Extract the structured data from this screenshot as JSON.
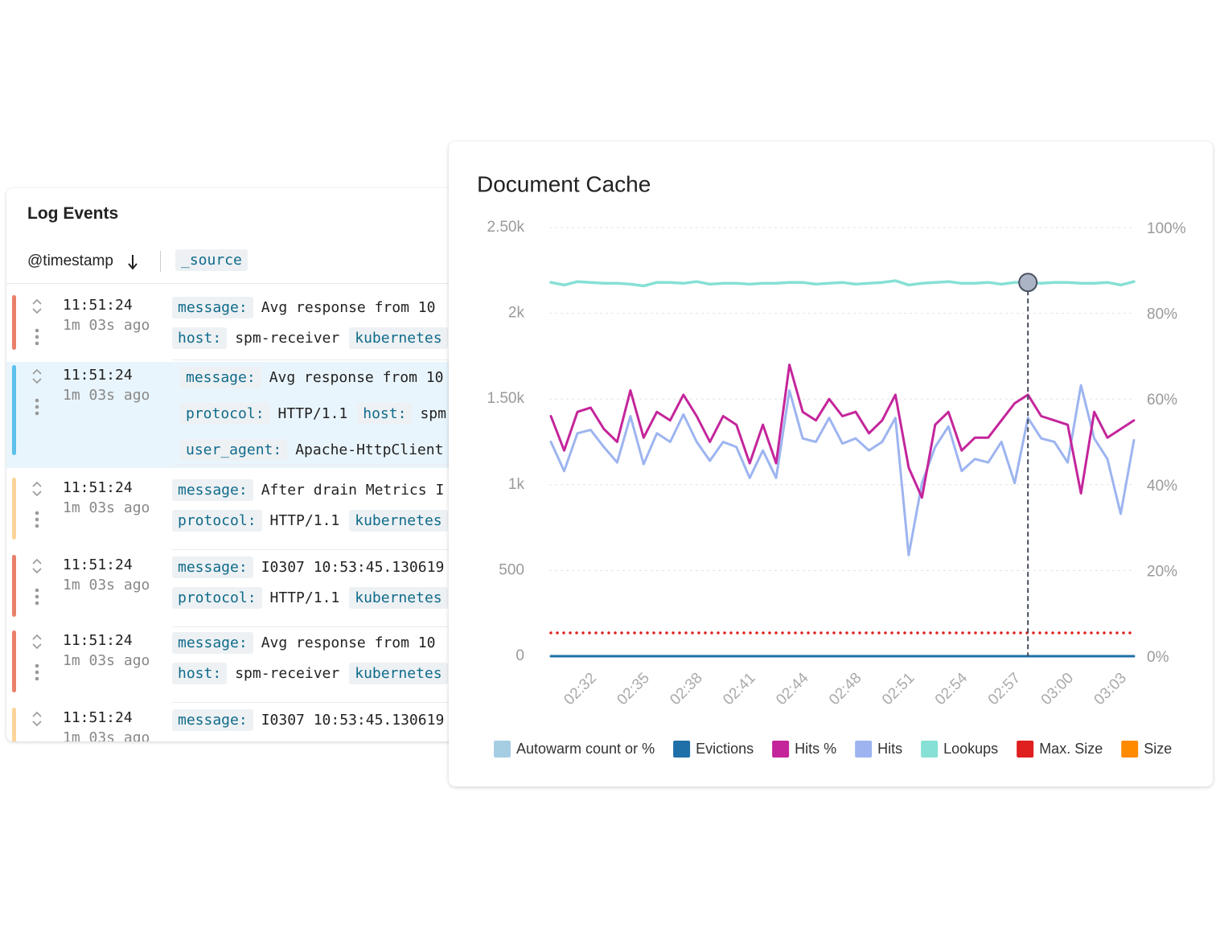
{
  "log_events": {
    "title": "Log Events",
    "sort_column": "@timestamp",
    "source_column": "_source",
    "rows": [
      {
        "time": "11:51:24",
        "ago": "1m 03s ago",
        "color": "#e8806a",
        "lines": [
          [
            {
              "key": "message:",
              "value": "Avg response from 10"
            }
          ],
          [
            {
              "key": "host:",
              "value": "spm-receiver"
            },
            {
              "key": "kubernetes"
            }
          ]
        ]
      },
      {
        "time": "11:51:24",
        "ago": "1m 03s ago",
        "color": "#5bc0eb",
        "selected": true,
        "lines": [
          [
            {
              "key": "message:",
              "value": "Avg response from 10"
            }
          ],
          [
            {
              "key": "protocol:",
              "value": "HTTP/1.1"
            },
            {
              "key": "host:",
              "value": "spm"
            }
          ],
          [
            {
              "key": "user_agent:",
              "value": "Apache-HttpClient"
            }
          ]
        ]
      },
      {
        "time": "11:51:24",
        "ago": "1m 03s ago",
        "color": "#fcd49a",
        "lines": [
          [
            {
              "key": "message:",
              "value": "After drain Metrics I"
            }
          ],
          [
            {
              "key": "protocol:",
              "value": "HTTP/1.1"
            },
            {
              "key": "kubernetes"
            }
          ]
        ]
      },
      {
        "time": "11:51:24",
        "ago": "1m 03s ago",
        "color": "#e8806a",
        "lines": [
          [
            {
              "key": "message:",
              "value": "I0307 10:53:45.130619"
            }
          ],
          [
            {
              "key": "protocol:",
              "value": "HTTP/1.1"
            },
            {
              "key": "kubernetes"
            }
          ]
        ]
      },
      {
        "time": "11:51:24",
        "ago": "1m 03s ago",
        "color": "#e8806a",
        "lines": [
          [
            {
              "key": "message:",
              "value": "Avg response from 10"
            }
          ],
          [
            {
              "key": "host:",
              "value": "spm-receiver"
            },
            {
              "key": "kubernetes"
            }
          ]
        ]
      },
      {
        "time": "11:51:24",
        "ago": "1m 03s ago",
        "color": "#fcd49a",
        "lines": [
          [
            {
              "key": "message:",
              "value": "I0307 10:53:45.130619"
            }
          ]
        ]
      }
    ]
  },
  "chart_data": {
    "type": "line",
    "title": "Document Cache",
    "categories": [
      null,
      null,
      null,
      "02:32",
      null,
      null,
      null,
      "02:35",
      null,
      null,
      null,
      "02:38",
      null,
      null,
      null,
      "02:41",
      null,
      null,
      null,
      "02:44",
      null,
      null,
      null,
      "02:48",
      null,
      null,
      null,
      "02:51",
      null,
      null,
      null,
      "02:54",
      null,
      null,
      null,
      "02:57",
      null,
      null,
      null,
      "03:00",
      null,
      null,
      null,
      "03:03",
      null
    ],
    "ylim": [
      0,
      2500
    ],
    "yticks": [
      0,
      500,
      {
        "value": 1000,
        "label": "1k"
      },
      {
        "value": 1500,
        "label": "1.50k"
      },
      {
        "value": 2000,
        "label": "2k"
      },
      {
        "value": 2500,
        "label": "2.50k"
      }
    ],
    "y2lim": [
      0,
      100
    ],
    "y2ticks": [
      {
        "value": 0,
        "label": "0%"
      },
      {
        "value": 20,
        "label": "20%"
      },
      {
        "value": 40,
        "label": "40%"
      },
      {
        "value": 60,
        "label": "60%"
      },
      {
        "value": 80,
        "label": "80%"
      },
      {
        "value": 100,
        "label": "100%"
      }
    ],
    "grid": true,
    "hover_index": 36,
    "series": [
      {
        "name": "Autowarm count or %",
        "color": "#a6cee3",
        "values": [
          null,
          null,
          null,
          null,
          null,
          null,
          null,
          null,
          null,
          null,
          null,
          null,
          null,
          null,
          null,
          null,
          null,
          null,
          null,
          null,
          null,
          null,
          null,
          null,
          null,
          null,
          null,
          null,
          null,
          null,
          null,
          null,
          null,
          null,
          null,
          null,
          null,
          null,
          null,
          null,
          null,
          null,
          null,
          null,
          null
        ]
      },
      {
        "name": "Evictions",
        "color": "#1f6fa8",
        "values": [
          0,
          0,
          0,
          0,
          0,
          0,
          0,
          0,
          0,
          0,
          0,
          0,
          0,
          0,
          0,
          0,
          0,
          0,
          0,
          0,
          0,
          0,
          0,
          0,
          0,
          0,
          0,
          0,
          0,
          0,
          0,
          0,
          0,
          0,
          0,
          0,
          0,
          0,
          0,
          0,
          0,
          0,
          0,
          0,
          0
        ]
      },
      {
        "name": "Hits %",
        "color": "#c4259b",
        "axis": "y2",
        "values": [
          56,
          48,
          57,
          58,
          53,
          50,
          62,
          51,
          57,
          55,
          61,
          56,
          50,
          56,
          54,
          45,
          54,
          45,
          68,
          57,
          55,
          60,
          56,
          57,
          52,
          55,
          61,
          44,
          37,
          54,
          57,
          48,
          51,
          51,
          55,
          59,
          61,
          56,
          55,
          54,
          38,
          57,
          51,
          53,
          55
        ]
      },
      {
        "name": "Hits",
        "color": "#9db4f0",
        "values": [
          1250,
          1080,
          1300,
          1320,
          1220,
          1130,
          1400,
          1120,
          1300,
          1250,
          1410,
          1250,
          1140,
          1250,
          1220,
          1040,
          1200,
          1040,
          1550,
          1270,
          1250,
          1390,
          1240,
          1270,
          1200,
          1250,
          1390,
          590,
          1010,
          1220,
          1340,
          1080,
          1150,
          1130,
          1250,
          1010,
          1390,
          1270,
          1250,
          1130,
          1580,
          1270,
          1150,
          830,
          1260
        ]
      },
      {
        "name": "Lookups",
        "color": "#86e0d5",
        "values": [
          2180,
          2165,
          2185,
          2180,
          2175,
          2175,
          2170,
          2160,
          2180,
          2180,
          2175,
          2185,
          2170,
          2175,
          2175,
          2170,
          2175,
          2175,
          2180,
          2180,
          2170,
          2175,
          2180,
          2170,
          2175,
          2180,
          2190,
          2165,
          2175,
          2180,
          2185,
          2175,
          2175,
          2180,
          2170,
          2180,
          2180,
          2175,
          2180,
          2180,
          2175,
          2175,
          2180,
          2165,
          2185
        ]
      },
      {
        "name": "Max. Size",
        "color": "#e01f1f",
        "style": "dotted",
        "values": [
          136,
          136,
          136,
          136,
          136,
          136,
          136,
          136,
          136,
          136,
          136,
          136,
          136,
          136,
          136,
          136,
          136,
          136,
          136,
          136,
          136,
          136,
          136,
          136,
          136,
          136,
          136,
          136,
          136,
          136,
          136,
          136,
          136,
          136,
          136,
          136,
          136,
          136,
          136,
          136,
          136,
          136,
          136,
          136,
          136
        ]
      },
      {
        "name": "Size",
        "color": "#ff8a00",
        "values": [
          null,
          null,
          null,
          null,
          null,
          null,
          null,
          null,
          null,
          null,
          null,
          null,
          null,
          null,
          null,
          null,
          null,
          null,
          null,
          null,
          null,
          null,
          null,
          null,
          null,
          null,
          null,
          null,
          null,
          null,
          null,
          null,
          null,
          null,
          null,
          null,
          null,
          null,
          null,
          null,
          null,
          null,
          null,
          null,
          null
        ]
      }
    ]
  }
}
